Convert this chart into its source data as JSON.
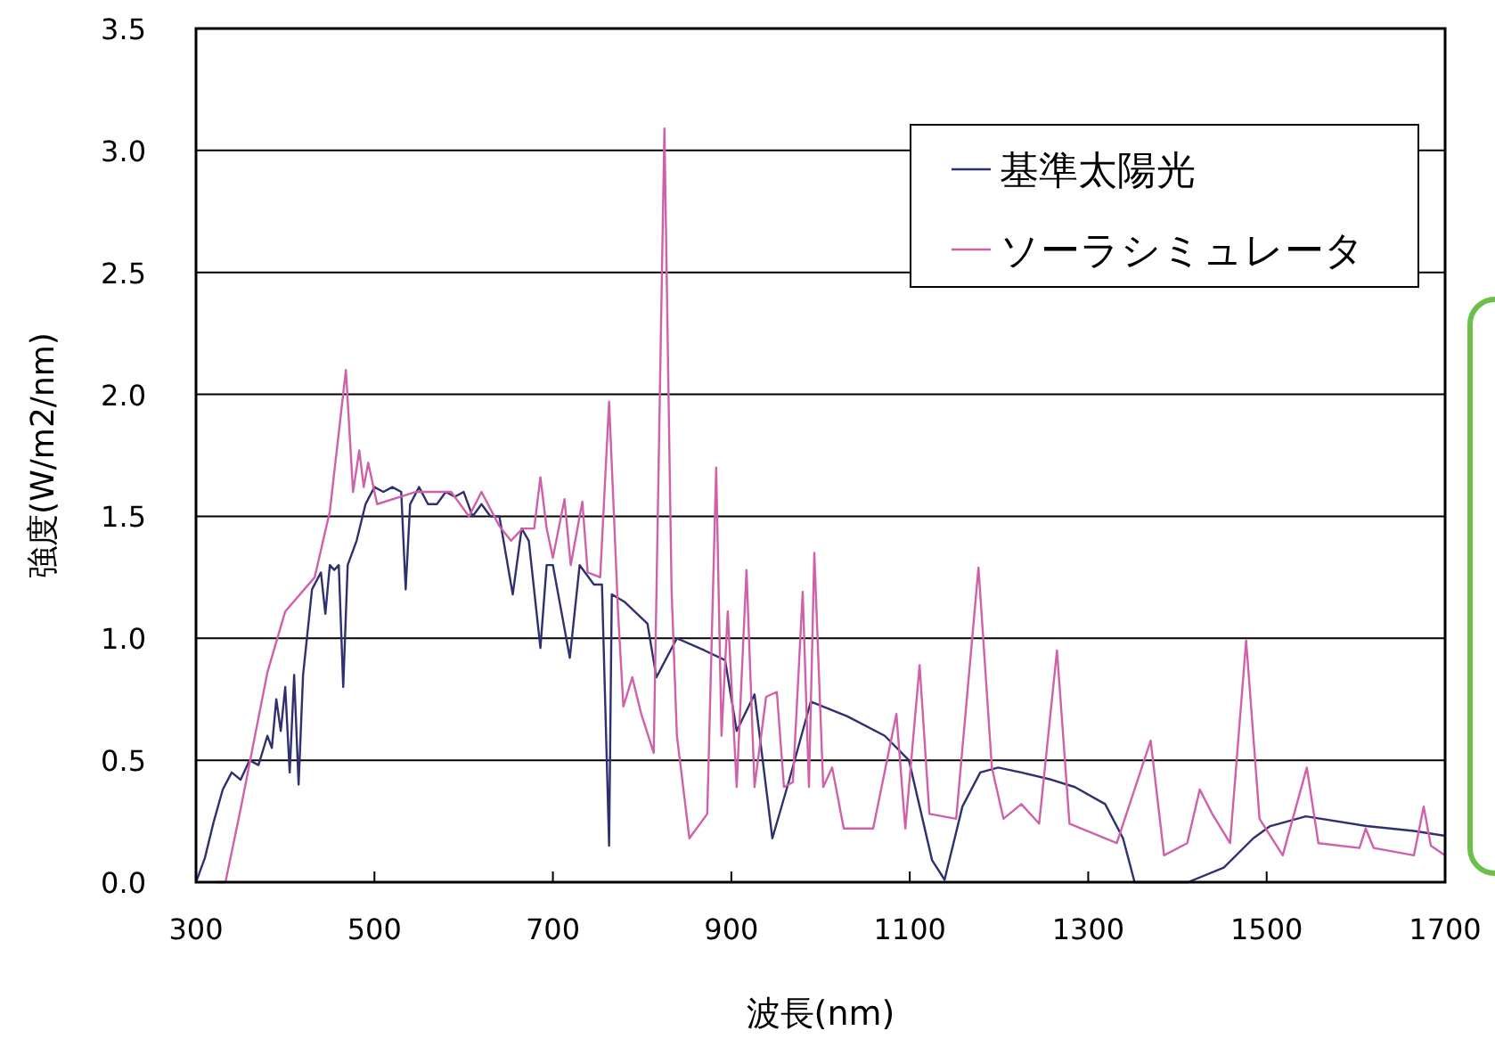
{
  "chart_data": {
    "type": "line",
    "xlabel": "波長(nm)",
    "ylabel": "強度(W/m2/nm)",
    "xlim": [
      300,
      1700
    ],
    "xticks": [
      300,
      500,
      700,
      900,
      1100,
      1300,
      1500,
      1700
    ],
    "ylim": [
      0,
      3.5
    ],
    "yticks": [
      {
        "value": 0,
        "label": "0.0"
      },
      0.5,
      {
        "value": 1,
        "label": "1.0"
      },
      1.5,
      {
        "value": 2,
        "label": "2.0"
      },
      2.5,
      {
        "value": 3,
        "label": "3.0"
      },
      3.5
    ],
    "grid": "y",
    "legend": "top right",
    "marker": "none",
    "line_style": "solid",
    "series": [
      {
        "name": "基準太陽光",
        "color": "#2e3070",
        "x": [
          300,
          310,
          320,
          330,
          340,
          350,
          360,
          370,
          380,
          385,
          390,
          395,
          400,
          405,
          410,
          415,
          420,
          430,
          440,
          445,
          450,
          455,
          460,
          465,
          470,
          480,
          490,
          500,
          510,
          520,
          530,
          535,
          540,
          550,
          560,
          570,
          580,
          590,
          600,
          610,
          620,
          630,
          640,
          655,
          665,
          673,
          686,
          693,
          700,
          719,
          730,
          746,
          755,
          763,
          766,
          780,
          806,
          816,
          839,
          870,
          893,
          906,
          926,
          946,
          965,
          989,
          1030,
          1072,
          1099,
          1125,
          1139,
          1159,
          1179,
          1199,
          1225,
          1259,
          1285,
          1319,
          1339,
          1352,
          1412,
          1452,
          1485,
          1504,
          1544,
          1612,
          1665,
          1700
        ],
        "values": [
          0,
          0.1,
          0.25,
          0.38,
          0.45,
          0.42,
          0.5,
          0.48,
          0.6,
          0.55,
          0.75,
          0.62,
          0.8,
          0.45,
          0.85,
          0.4,
          0.85,
          1.2,
          1.27,
          1.1,
          1.3,
          1.28,
          1.3,
          0.8,
          1.3,
          1.4,
          1.55,
          1.62,
          1.6,
          1.62,
          1.6,
          1.2,
          1.55,
          1.62,
          1.55,
          1.55,
          1.6,
          1.58,
          1.6,
          1.5,
          1.55,
          1.5,
          1.5,
          1.18,
          1.45,
          1.4,
          0.96,
          1.3,
          1.3,
          0.92,
          1.3,
          1.22,
          1.22,
          0.15,
          1.18,
          1.15,
          1.06,
          0.84,
          1.0,
          0.95,
          0.91,
          0.62,
          0.77,
          0.18,
          0.42,
          0.74,
          0.68,
          0.6,
          0.5,
          0.09,
          0.01,
          0.31,
          0.45,
          0.47,
          0.45,
          0.42,
          0.39,
          0.32,
          0.18,
          0,
          0,
          0.06,
          0.18,
          0.23,
          0.27,
          0.23,
          0.21,
          0.19
        ]
      },
      {
        "name": "ソーラシミュレータ",
        "color": "#d060a8",
        "x": [
          322,
          333,
          350,
          380,
          400,
          433,
          450,
          468,
          476,
          483,
          488,
          493,
          503,
          546,
          586,
          606,
          620,
          640,
          653,
          666,
          679,
          686,
          693,
          700,
          713,
          720,
          733,
          739,
          753,
          763,
          773,
          779,
          789,
          799,
          813,
          825,
          833,
          839,
          853,
          873,
          883,
          889,
          896,
          906,
          917,
          926,
          939,
          951,
          959,
          969,
          980,
          987,
          993,
          1003,
          1013,
          1026,
          1059,
          1085,
          1095,
          1111,
          1122,
          1152,
          1177,
          1192,
          1205,
          1225,
          1245,
          1265,
          1279,
          1332,
          1370,
          1385,
          1411,
          1425,
          1439,
          1459,
          1477,
          1492,
          1518,
          1545,
          1558,
          1604,
          1611,
          1620,
          1665,
          1676,
          1684,
          1700
        ],
        "values": [
          0,
          0,
          0.3,
          0.86,
          1.11,
          1.25,
          1.52,
          2.1,
          1.6,
          1.77,
          1.62,
          1.72,
          1.55,
          1.6,
          1.6,
          1.5,
          1.6,
          1.46,
          1.4,
          1.45,
          1.45,
          1.66,
          1.45,
          1.33,
          1.57,
          1.3,
          1.56,
          1.27,
          1.25,
          1.97,
          1.11,
          0.72,
          0.84,
          0.69,
          0.53,
          3.09,
          1.2,
          0.6,
          0.18,
          0.28,
          1.7,
          0.6,
          1.11,
          0.39,
          1.28,
          0.39,
          0.76,
          0.78,
          0.39,
          0.41,
          1.19,
          0.39,
          1.35,
          0.39,
          0.47,
          0.22,
          0.22,
          0.69,
          0.22,
          0.89,
          0.28,
          0.26,
          1.29,
          0.47,
          0.26,
          0.32,
          0.24,
          0.95,
          0.24,
          0.16,
          0.58,
          0.11,
          0.16,
          0.38,
          0.28,
          0.16,
          0.99,
          0.26,
          0.11,
          0.47,
          0.16,
          0.14,
          0.22,
          0.14,
          0.11,
          0.31,
          0.15,
          0.11
        ]
      }
    ]
  }
}
